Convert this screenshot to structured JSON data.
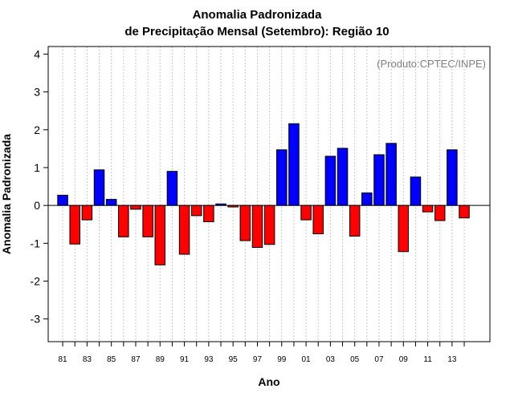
{
  "chart_data": {
    "type": "bar",
    "title": "Anomalia Padronizada",
    "subtitle": "de Precipitação Mensal (Setembro): Região 10",
    "xlabel": "Ano",
    "ylabel": "Anomalia Padronizada",
    "credit": "(Produto:CPTEC/INPE)",
    "ylim": [
      -3.6,
      4.2
    ],
    "y_ticks": [
      -3,
      -2,
      -1,
      0,
      1,
      2,
      3,
      4
    ],
    "x_tick_labels": [
      "81",
      "83",
      "85",
      "87",
      "89",
      "91",
      "93",
      "95",
      "97",
      "99",
      "01",
      "03",
      "05",
      "07",
      "09",
      "11",
      "13"
    ],
    "grid": true,
    "colors": {
      "positive": "#0000ff",
      "negative": "#ff0000"
    },
    "categories": [
      "1981",
      "1982",
      "1983",
      "1984",
      "1985",
      "1986",
      "1987",
      "1988",
      "1989",
      "1990",
      "1991",
      "1992",
      "1993",
      "1994",
      "1995",
      "1996",
      "1997",
      "1998",
      "1999",
      "2000",
      "2001",
      "2002",
      "2003",
      "2004",
      "2005",
      "2006",
      "2007",
      "2008",
      "2009",
      "2010",
      "2011",
      "2012",
      "2013",
      "2014"
    ],
    "values": [
      0.27,
      -1.02,
      -0.38,
      0.94,
      0.16,
      -0.83,
      -0.1,
      -0.83,
      -1.57,
      0.9,
      -1.29,
      -0.27,
      -0.43,
      0.04,
      -0.04,
      -0.93,
      -1.11,
      -1.03,
      1.47,
      2.16,
      -0.38,
      -0.75,
      1.3,
      1.51,
      -0.81,
      0.33,
      1.34,
      1.64,
      -1.22,
      0.75,
      -0.17,
      -0.4,
      1.47,
      -0.33
    ]
  }
}
